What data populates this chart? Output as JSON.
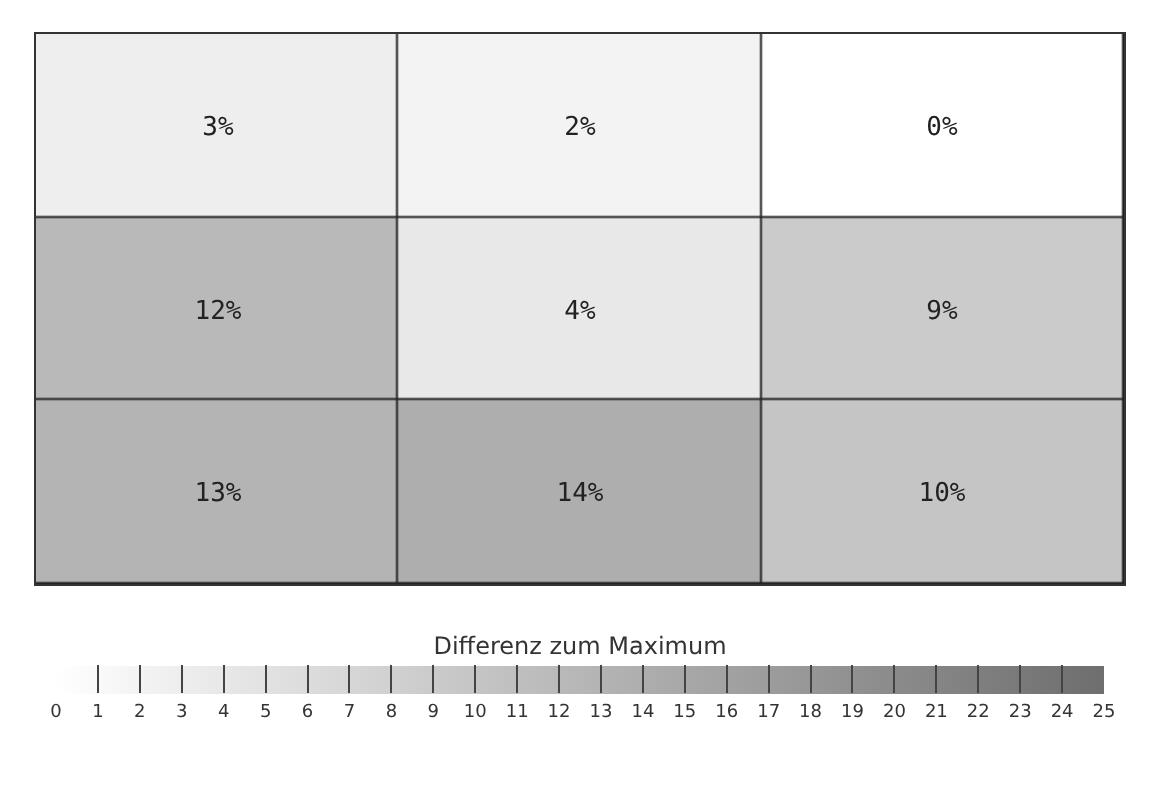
{
  "chart_data": {
    "type": "heatmap",
    "clabel": "Differenz zum Maximum",
    "categories": [
      null,
      null,
      null
    ],
    "y_categories": [
      null,
      null,
      null
    ],
    "cells": [
      [
        3,
        2,
        0
      ],
      [
        12,
        4,
        9
      ],
      [
        13,
        14,
        10
      ]
    ],
    "cell_labels": [
      [
        "3%",
        "2%",
        "0%"
      ],
      [
        "12%",
        "4%",
        "9%"
      ],
      [
        "13%",
        "14%",
        "10%"
      ]
    ],
    "clim": [
      0,
      25
    ],
    "cticks": [
      0,
      1,
      2,
      3,
      4,
      5,
      6,
      7,
      8,
      9,
      10,
      11,
      12,
      13,
      14,
      15,
      16,
      17,
      18,
      19,
      20,
      21,
      22,
      23,
      24,
      25
    ]
  }
}
